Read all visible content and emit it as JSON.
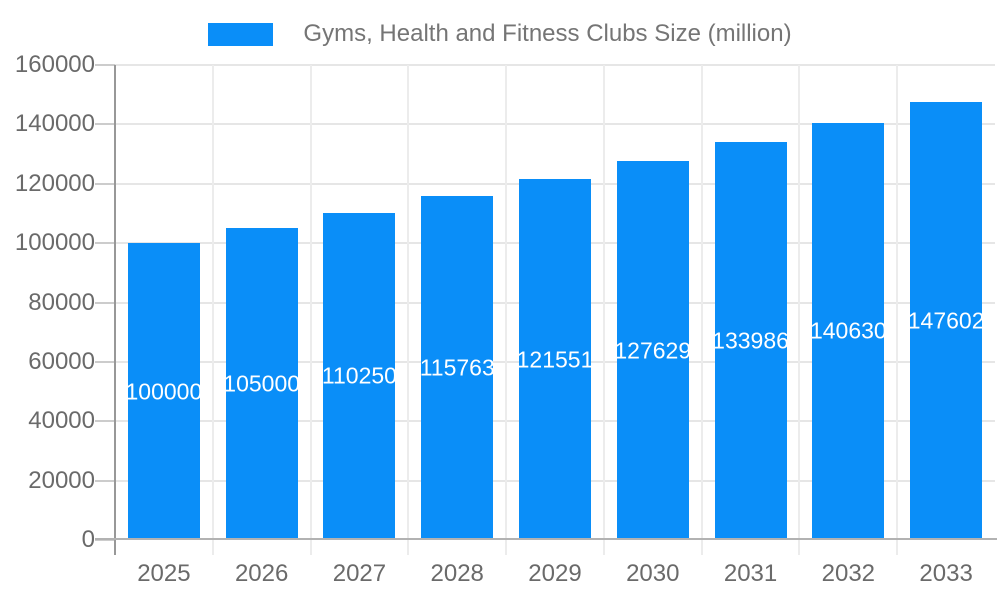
{
  "chart_data": {
    "type": "bar",
    "title": "Gyms, Health and Fitness Clubs Size (million)",
    "legend_position": "top",
    "categories": [
      "2025",
      "2026",
      "2027",
      "2028",
      "2029",
      "2030",
      "2031",
      "2032",
      "2033"
    ],
    "series": [
      {
        "name": "Gyms, Health and Fitness Clubs Size (million)",
        "values": [
          100000,
          105000,
          110250,
          115763,
          121551,
          127629,
          133986,
          140630,
          147602
        ]
      }
    ],
    "value_labels": [
      "100000",
      "105000",
      "110250",
      "115763",
      "121551",
      "127629",
      "133986",
      "140630",
      "147602"
    ],
    "xlabel": "",
    "ylabel": "",
    "ylim": [
      0,
      160000
    ],
    "ytick_step": 20000,
    "ytick_labels": [
      "0",
      "20000",
      "40000",
      "60000",
      "80000",
      "100000",
      "120000",
      "140000",
      "160000"
    ],
    "grid": true,
    "colors": {
      "bar": "#0a8ef8",
      "bar_value_text": "#ffffff",
      "axis_text": "#6a6a6a",
      "title_text": "#757575",
      "gridline": "#e6e6e6",
      "x_axis_line": "#b2b2b2",
      "y_axis_line": "#989898"
    }
  }
}
